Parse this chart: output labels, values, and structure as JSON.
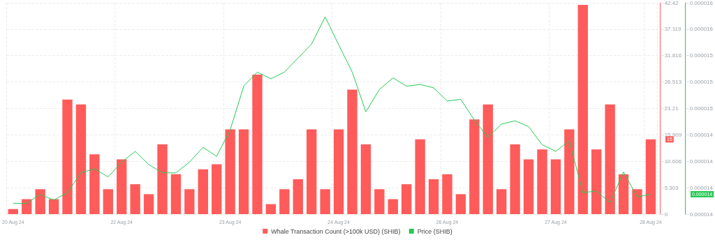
{
  "chart_data": {
    "type": "bar",
    "categories": [
      "20 Aug 24",
      null,
      null,
      null,
      null,
      null,
      null,
      null,
      "22 Aug 24",
      null,
      null,
      null,
      null,
      null,
      null,
      null,
      "23 Aug 24",
      null,
      null,
      null,
      null,
      null,
      null,
      null,
      "24 Aug 24",
      null,
      null,
      null,
      null,
      null,
      null,
      null,
      "26 Aug 24",
      null,
      null,
      null,
      null,
      null,
      null,
      null,
      "27 Aug 24",
      null,
      null,
      null,
      null,
      null,
      null,
      "28 Aug 24"
    ],
    "series": [
      {
        "name": "Whale Transaction Count (>100k USD) (SHIB)",
        "color": "#ff5b5b",
        "values": [
          1,
          3,
          5,
          3,
          23,
          22,
          12,
          5,
          11,
          6,
          4,
          14,
          8,
          5,
          9,
          10,
          17,
          17,
          28,
          2,
          5,
          7,
          17,
          5,
          17,
          25,
          14,
          5,
          3,
          6,
          15,
          7,
          8,
          4,
          19,
          22,
          5,
          14,
          11,
          13,
          11,
          17,
          42,
          13,
          22,
          8,
          5,
          15
        ]
      },
      {
        "name": "Price (SHIB)",
        "type": "line",
        "axis": "y2",
        "color": "#26c953",
        "values": [
          1.365e-05,
          1.365e-05,
          1.376e-05,
          1.369e-05,
          1.378e-05,
          1.402e-05,
          1.407e-05,
          1.397e-05,
          1.415e-05,
          1.428e-05,
          1.412e-05,
          1.402e-05,
          1.402e-05,
          1.415e-05,
          1.433e-05,
          1.422e-05,
          1.454e-05,
          1.507e-05,
          1.524e-05,
          1.516e-05,
          1.524e-05,
          1.541e-05,
          1.558e-05,
          1.591e-05,
          1.557e-05,
          1.524e-05,
          1.476e-05,
          1.503e-05,
          1.517e-05,
          1.507e-05,
          1.509e-05,
          1.505e-05,
          1.489e-05,
          1.491e-05,
          1.466e-05,
          1.445e-05,
          1.461e-05,
          1.465e-05,
          1.458e-05,
          1.436e-05,
          1.428e-05,
          1.441e-05,
          1.378e-05,
          1.38e-05,
          1.366e-05,
          1.403e-05,
          1.373e-05,
          1.376e-05
        ]
      }
    ],
    "ylim": [
      0,
      42.42
    ],
    "yticks": [
      0,
      5.303,
      10.606,
      15.909,
      21.21,
      26.513,
      31.816,
      37.119,
      42.42
    ],
    "y2lim": [
      1.352e-05,
      1.608e-05
    ],
    "y2ticks": [
      {
        "value": 1.352e-05,
        "label": "0.000014"
      },
      {
        "value": 1.384e-05,
        "label": "0.000014"
      },
      {
        "value": 1.416e-05,
        "label": "0.000014"
      },
      {
        "value": 1.448e-05,
        "label": "0.000014"
      },
      {
        "value": 1.48e-05,
        "label": "0.000015"
      },
      {
        "value": 1.512e-05,
        "label": "0.000015"
      },
      {
        "value": 1.544e-05,
        "label": "0.000015"
      },
      {
        "value": 1.576e-05,
        "label": "0.000016"
      },
      {
        "value": 1.608e-05,
        "label": "0.000016"
      }
    ],
    "annotations": [
      "15",
      "0.000014"
    ],
    "grid": true,
    "legend": "bottom",
    "marker": "none",
    "line_style": "solid"
  }
}
